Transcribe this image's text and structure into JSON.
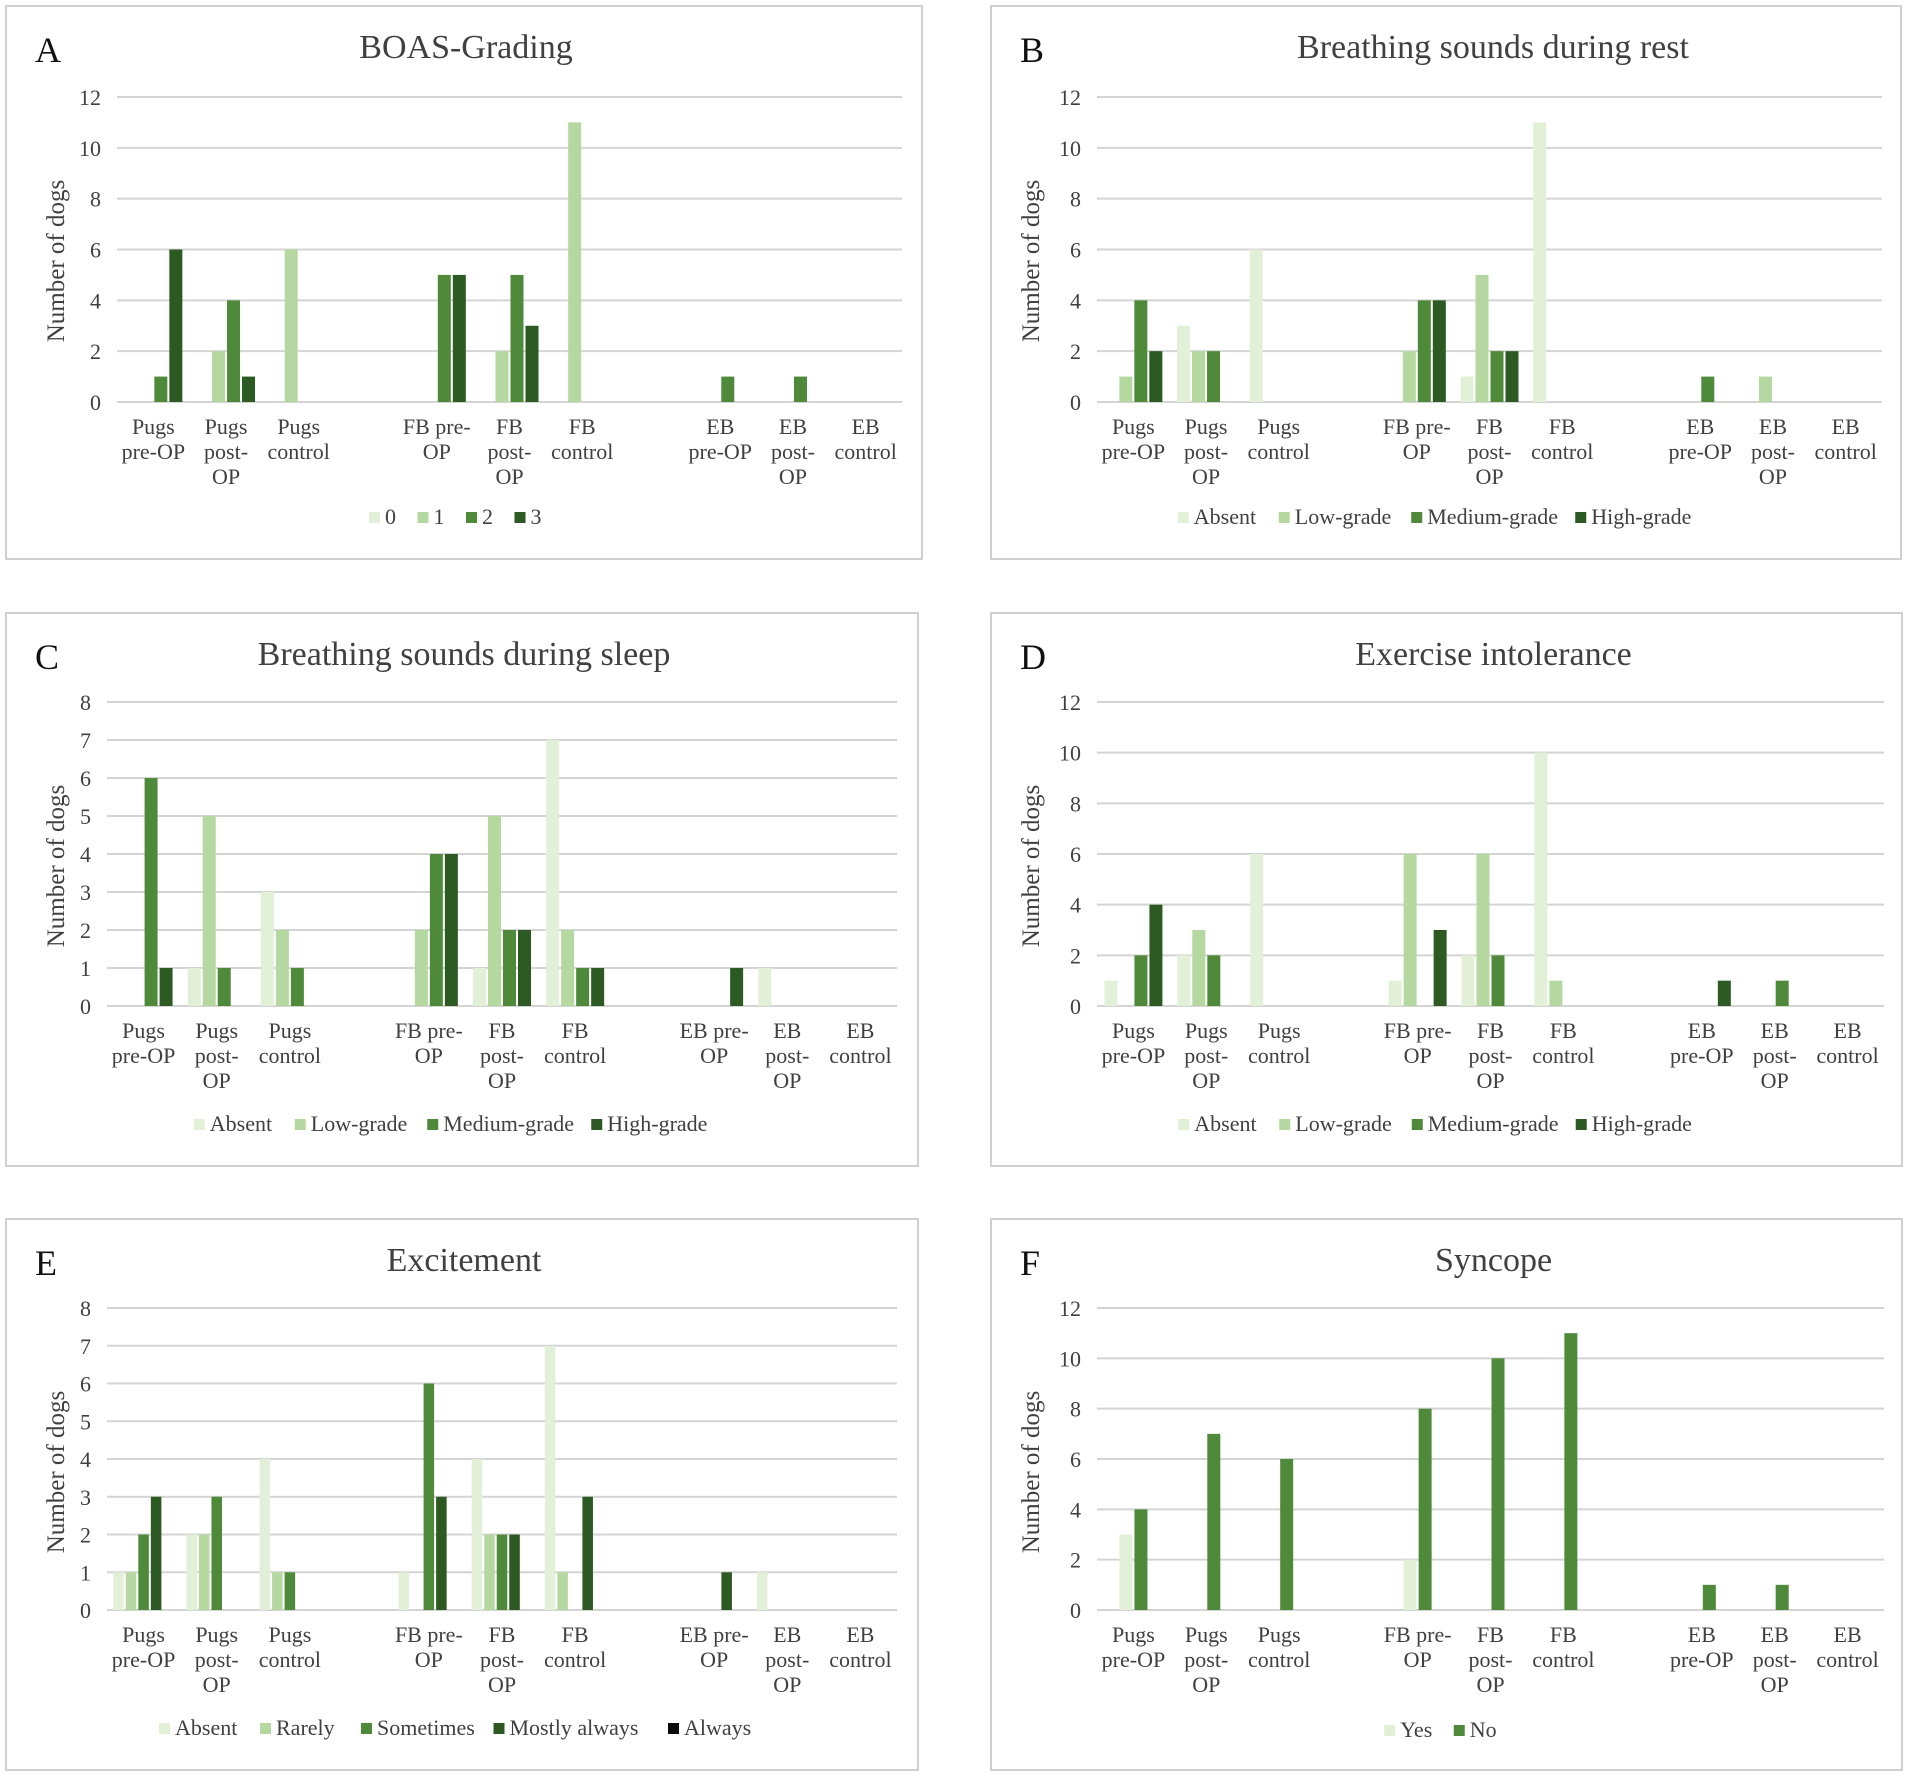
{
  "y_axis_label": "Number of dogs",
  "colors": {
    "c0": "#e3f0d8",
    "c1": "#b5d8a1",
    "c2": "#4f8a3b",
    "c3": "#2c5a22",
    "c4": "#0b0b0b"
  },
  "chart_data": [
    {
      "letter": "A",
      "type": "bar",
      "title": "BOAS-Grading",
      "ylim": [
        0,
        12
      ],
      "yticks": [
        0,
        2,
        4,
        6,
        8,
        10,
        12
      ],
      "categories": [
        [
          "Pugs",
          "pre-OP"
        ],
        [
          "Pugs",
          "post-",
          "OP"
        ],
        [
          "Pugs",
          "control"
        ],
        [
          "FB pre-",
          "OP"
        ],
        [
          "FB",
          "post-",
          "OP"
        ],
        [
          "FB",
          "control"
        ],
        [
          "EB",
          "pre-OP"
        ],
        [
          "EB",
          "post-",
          "OP"
        ],
        [
          "EB",
          "control"
        ]
      ],
      "series": [
        {
          "name": "0",
          "color": "#e3f0d8",
          "values": [
            0,
            0,
            0,
            0,
            0,
            0,
            0,
            0,
            0
          ]
        },
        {
          "name": "1",
          "color": "#b5d8a1",
          "values": [
            0,
            2,
            6,
            0,
            2,
            11,
            0,
            0,
            0
          ]
        },
        {
          "name": "2",
          "color": "#4f8a3b",
          "values": [
            1,
            4,
            0,
            5,
            5,
            0,
            1,
            1,
            0
          ]
        },
        {
          "name": "3",
          "color": "#2c5a22",
          "values": [
            6,
            1,
            0,
            5,
            3,
            0,
            0,
            0,
            0
          ]
        }
      ]
    },
    {
      "letter": "B",
      "type": "bar",
      "title": "Breathing sounds during rest",
      "ylim": [
        0,
        12
      ],
      "yticks": [
        0,
        2,
        4,
        6,
        8,
        10,
        12
      ],
      "categories": [
        [
          "Pugs",
          "pre-OP"
        ],
        [
          "Pugs",
          "post-",
          "OP"
        ],
        [
          "Pugs",
          "control"
        ],
        [
          "FB pre-",
          "OP"
        ],
        [
          "FB",
          "post-",
          "OP"
        ],
        [
          "FB",
          "control"
        ],
        [
          "EB",
          "pre-OP"
        ],
        [
          "EB",
          "post-",
          "OP"
        ],
        [
          "EB",
          "control"
        ]
      ],
      "series": [
        {
          "name": "Absent",
          "color": "#e3f0d8",
          "values": [
            0,
            3,
            6,
            0,
            1,
            11,
            0,
            0,
            0
          ]
        },
        {
          "name": "Low-grade",
          "color": "#b5d8a1",
          "values": [
            1,
            2,
            0,
            2,
            5,
            0,
            0,
            1,
            0
          ]
        },
        {
          "name": "Medium-grade",
          "color": "#4f8a3b",
          "values": [
            4,
            2,
            0,
            4,
            2,
            0,
            1,
            0,
            0
          ]
        },
        {
          "name": "High-grade",
          "color": "#2c5a22",
          "values": [
            2,
            0,
            0,
            4,
            2,
            0,
            0,
            0,
            0
          ]
        }
      ]
    },
    {
      "letter": "C",
      "type": "bar",
      "title": "Breathing sounds during sleep",
      "ylim": [
        0,
        8
      ],
      "yticks": [
        0,
        1,
        2,
        3,
        4,
        5,
        6,
        7,
        8
      ],
      "categories": [
        [
          "Pugs",
          "pre-OP"
        ],
        [
          "Pugs",
          "post-",
          "OP"
        ],
        [
          "Pugs",
          "control"
        ],
        [
          "FB pre-",
          "OP"
        ],
        [
          "FB",
          "post-",
          "OP"
        ],
        [
          "FB",
          "control"
        ],
        [
          "EB pre-",
          "OP"
        ],
        [
          "EB",
          "post-",
          "OP"
        ],
        [
          "EB",
          "control"
        ]
      ],
      "series": [
        {
          "name": "Absent",
          "color": "#e3f0d8",
          "values": [
            0,
            1,
            3,
            0,
            1,
            7,
            0,
            1,
            0
          ]
        },
        {
          "name": "Low-grade",
          "color": "#b5d8a1",
          "values": [
            0,
            5,
            2,
            2,
            5,
            2,
            0,
            0,
            0
          ]
        },
        {
          "name": "Medium-grade",
          "color": "#4f8a3b",
          "values": [
            6,
            1,
            1,
            4,
            2,
            1,
            0,
            0,
            0
          ]
        },
        {
          "name": "High-grade",
          "color": "#2c5a22",
          "values": [
            1,
            0,
            0,
            4,
            2,
            1,
            1,
            0,
            0
          ]
        }
      ]
    },
    {
      "letter": "D",
      "type": "bar",
      "title": "Exercise intolerance",
      "ylim": [
        0,
        12
      ],
      "yticks": [
        0,
        2,
        4,
        6,
        8,
        10,
        12
      ],
      "categories": [
        [
          "Pugs",
          "pre-OP"
        ],
        [
          "Pugs",
          "post-",
          "OP"
        ],
        [
          "Pugs",
          "control"
        ],
        [
          "FB pre-",
          "OP"
        ],
        [
          "FB",
          "post-",
          "OP"
        ],
        [
          "FB",
          "control"
        ],
        [
          "EB",
          "pre-OP"
        ],
        [
          "EB",
          "post-",
          "OP"
        ],
        [
          "EB",
          "control"
        ]
      ],
      "series": [
        {
          "name": "Absent",
          "color": "#e3f0d8",
          "values": [
            1,
            2,
            6,
            1,
            2,
            10,
            0,
            0,
            0
          ]
        },
        {
          "name": "Low-grade",
          "color": "#b5d8a1",
          "values": [
            0,
            3,
            0,
            6,
            6,
            1,
            0,
            0,
            0
          ]
        },
        {
          "name": "Medium-grade",
          "color": "#4f8a3b",
          "values": [
            2,
            2,
            0,
            0,
            2,
            0,
            0,
            1,
            0
          ]
        },
        {
          "name": "High-grade",
          "color": "#2c5a22",
          "values": [
            4,
            0,
            0,
            3,
            0,
            0,
            1,
            0,
            0
          ]
        }
      ]
    },
    {
      "letter": "E",
      "type": "bar",
      "title": "Excitement",
      "ylim": [
        0,
        8
      ],
      "yticks": [
        0,
        1,
        2,
        3,
        4,
        5,
        6,
        7,
        8
      ],
      "categories": [
        [
          "Pugs",
          "pre-OP"
        ],
        [
          "Pugs",
          "post-",
          "OP"
        ],
        [
          "Pugs",
          "control"
        ],
        [
          "FB pre-",
          "OP"
        ],
        [
          "FB",
          "post-",
          "OP"
        ],
        [
          "FB",
          "control"
        ],
        [
          "EB pre-",
          "OP"
        ],
        [
          "EB",
          "post-",
          "OP"
        ],
        [
          "EB",
          "control"
        ]
      ],
      "series": [
        {
          "name": "Absent",
          "color": "#e3f0d8",
          "values": [
            1,
            2,
            4,
            1,
            4,
            7,
            0,
            1,
            0
          ]
        },
        {
          "name": "Rarely",
          "color": "#b5d8a1",
          "values": [
            1,
            2,
            1,
            0,
            2,
            1,
            0,
            0,
            0
          ]
        },
        {
          "name": "Sometimes",
          "color": "#4f8a3b",
          "values": [
            2,
            3,
            1,
            6,
            2,
            0,
            0,
            0,
            0
          ]
        },
        {
          "name": "Mostly always",
          "color": "#2c5a22",
          "values": [
            3,
            0,
            0,
            3,
            2,
            3,
            1,
            0,
            0
          ]
        },
        {
          "name": "Always",
          "color": "#0b0b0b",
          "values": [
            0,
            0,
            0,
            0,
            0,
            0,
            0,
            0,
            0
          ]
        }
      ]
    },
    {
      "letter": "F",
      "type": "bar",
      "title": "Syncope",
      "ylim": [
        0,
        12
      ],
      "yticks": [
        0,
        2,
        4,
        6,
        8,
        10,
        12
      ],
      "categories": [
        [
          "Pugs",
          "pre-OP"
        ],
        [
          "Pugs",
          "post-",
          "OP"
        ],
        [
          "Pugs",
          "control"
        ],
        [
          "FB pre-",
          "OP"
        ],
        [
          "FB",
          "post-",
          "OP"
        ],
        [
          "FB",
          "control"
        ],
        [
          "EB",
          "pre-OP"
        ],
        [
          "EB",
          "post-",
          "OP"
        ],
        [
          "EB",
          "control"
        ]
      ],
      "series": [
        {
          "name": "Yes",
          "color": "#e3f0d8",
          "values": [
            3,
            0,
            0,
            2,
            0,
            0,
            0,
            0,
            0
          ]
        },
        {
          "name": "No",
          "color": "#4f8a3b",
          "values": [
            4,
            7,
            6,
            8,
            10,
            11,
            1,
            1,
            0
          ]
        }
      ]
    }
  ]
}
